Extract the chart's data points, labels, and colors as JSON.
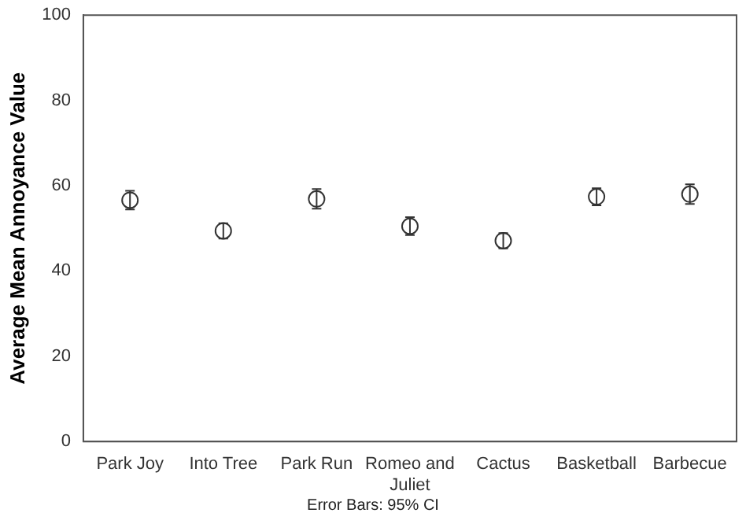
{
  "chart_data": {
    "type": "scatter",
    "ylabel": "Average Mean Annoyance Value",
    "categories": [
      "Park Joy",
      "Into Tree",
      "Park Run",
      "Romeo and Juliet",
      "Cactus",
      "Basketball",
      "Barbecue"
    ],
    "values": [
      56.6,
      49.4,
      56.9,
      50.5,
      47.1,
      57.4,
      58.0
    ],
    "errors": [
      2.2,
      1.8,
      2.3,
      2.1,
      1.8,
      2.0,
      2.3
    ],
    "color": "#333333",
    "marker": "circle",
    "ylim": [
      0,
      100
    ],
    "yticks": [
      0,
      20,
      40,
      60,
      80,
      100
    ],
    "grid": false,
    "legend": false,
    "annotations": [
      "Error Bars: 95% CI"
    ]
  }
}
